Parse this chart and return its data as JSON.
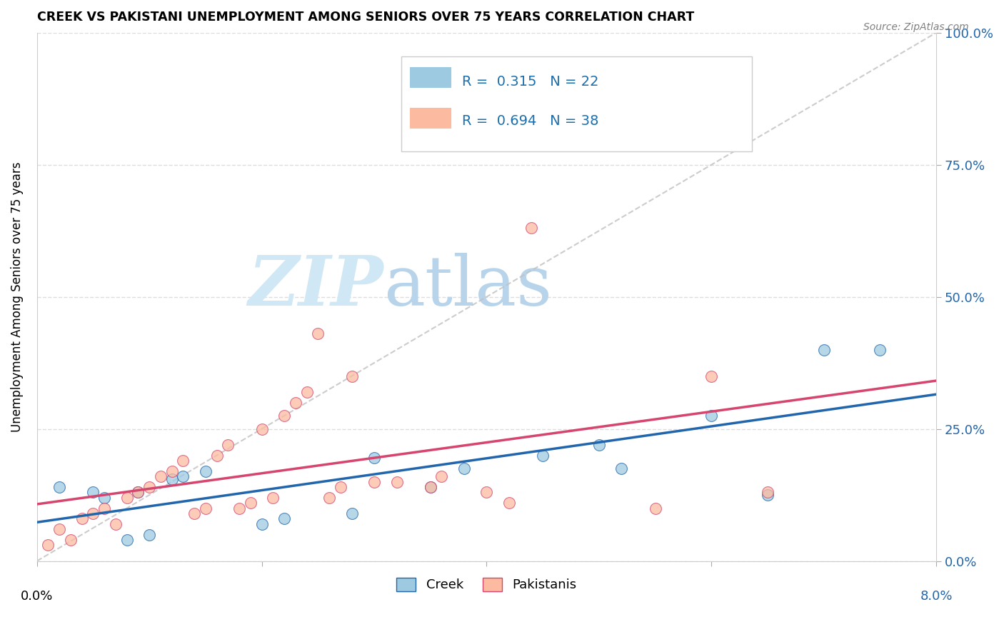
{
  "title": "CREEK VS PAKISTANI UNEMPLOYMENT AMONG SENIORS OVER 75 YEARS CORRELATION CHART",
  "source": "Source: ZipAtlas.com",
  "ylabel": "Unemployment Among Seniors over 75 years",
  "creek_R": 0.315,
  "creek_N": 22,
  "pakistani_R": 0.694,
  "pakistani_N": 38,
  "creek_color": "#9ecae1",
  "pakistani_color": "#fcbba1",
  "creek_line_color": "#2166ac",
  "pakistani_line_color": "#d6456e",
  "ref_line_color": "#c0c0c0",
  "legend_color": "#1a6faf",
  "creek_points_x": [
    0.002,
    0.005,
    0.006,
    0.008,
    0.009,
    0.01,
    0.012,
    0.013,
    0.015,
    0.02,
    0.022,
    0.028,
    0.03,
    0.035,
    0.038,
    0.045,
    0.05,
    0.052,
    0.06,
    0.065,
    0.07,
    0.075
  ],
  "creek_points_y": [
    0.14,
    0.13,
    0.12,
    0.04,
    0.13,
    0.05,
    0.155,
    0.16,
    0.17,
    0.07,
    0.08,
    0.09,
    0.195,
    0.14,
    0.175,
    0.2,
    0.22,
    0.175,
    0.275,
    0.125,
    0.4,
    0.4
  ],
  "pak_points_x": [
    0.001,
    0.002,
    0.003,
    0.004,
    0.005,
    0.006,
    0.007,
    0.008,
    0.009,
    0.01,
    0.011,
    0.012,
    0.013,
    0.014,
    0.015,
    0.016,
    0.017,
    0.018,
    0.019,
    0.02,
    0.021,
    0.022,
    0.023,
    0.024,
    0.025,
    0.026,
    0.027,
    0.028,
    0.03,
    0.032,
    0.035,
    0.036,
    0.04,
    0.042,
    0.044,
    0.055,
    0.06,
    0.065
  ],
  "pak_points_y": [
    0.03,
    0.06,
    0.04,
    0.08,
    0.09,
    0.1,
    0.07,
    0.12,
    0.13,
    0.14,
    0.16,
    0.17,
    0.19,
    0.09,
    0.1,
    0.2,
    0.22,
    0.1,
    0.11,
    0.25,
    0.12,
    0.275,
    0.3,
    0.32,
    0.43,
    0.12,
    0.14,
    0.35,
    0.15,
    0.15,
    0.14,
    0.16,
    0.13,
    0.11,
    0.63,
    0.1,
    0.35,
    0.13
  ],
  "xmin": 0.0,
  "xmax": 0.08,
  "ymin": 0.0,
  "ymax": 1.0,
  "yticks": [
    0.0,
    0.25,
    0.5,
    0.75,
    1.0
  ],
  "xticks": [
    0.0,
    0.02,
    0.04,
    0.06,
    0.08
  ],
  "grid_color": "#dddddd",
  "bg_color": "#ffffff"
}
